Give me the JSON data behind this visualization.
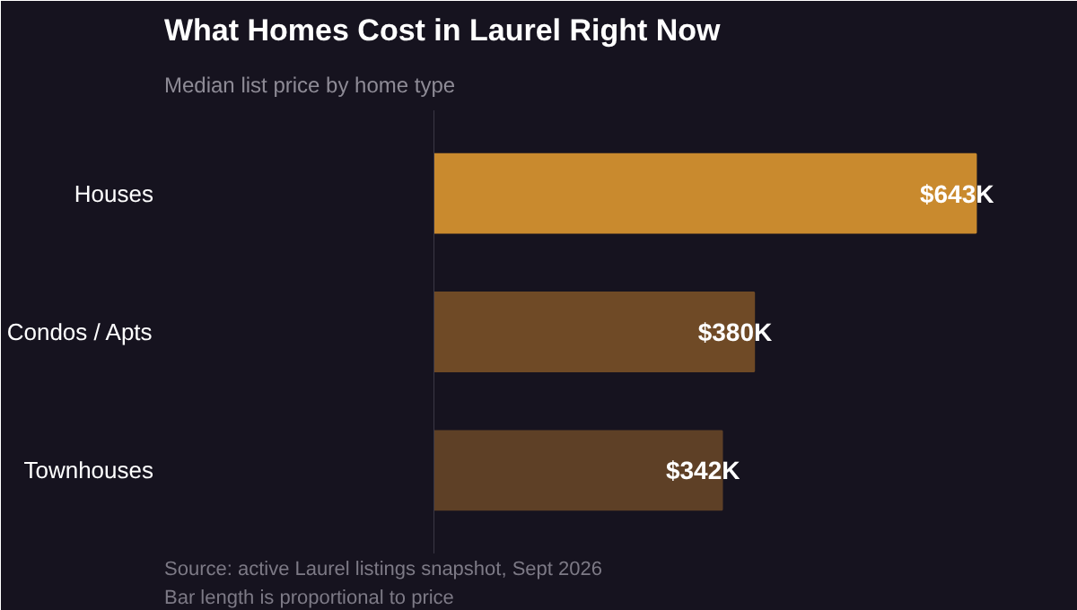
{
  "chart_data": {
    "type": "bar",
    "orientation": "horizontal",
    "title": "What Homes Cost in Laurel Right Now",
    "subtitle": "Median list price by home type",
    "categories": [
      "Houses",
      "Condos / Apts",
      "Townhouses"
    ],
    "values": [
      643,
      380,
      342
    ],
    "colors": [
      "#c98a2e",
      "#6f4a26",
      "#5e4026"
    ],
    "value_labels": [
      "$643K",
      "$380K",
      "$342K"
    ],
    "xlim": [
      0,
      700
    ],
    "annotations": [
      "Source: active Laurel listings snapshot, Sept 2026",
      "Bar length is proportional to price"
    ]
  }
}
